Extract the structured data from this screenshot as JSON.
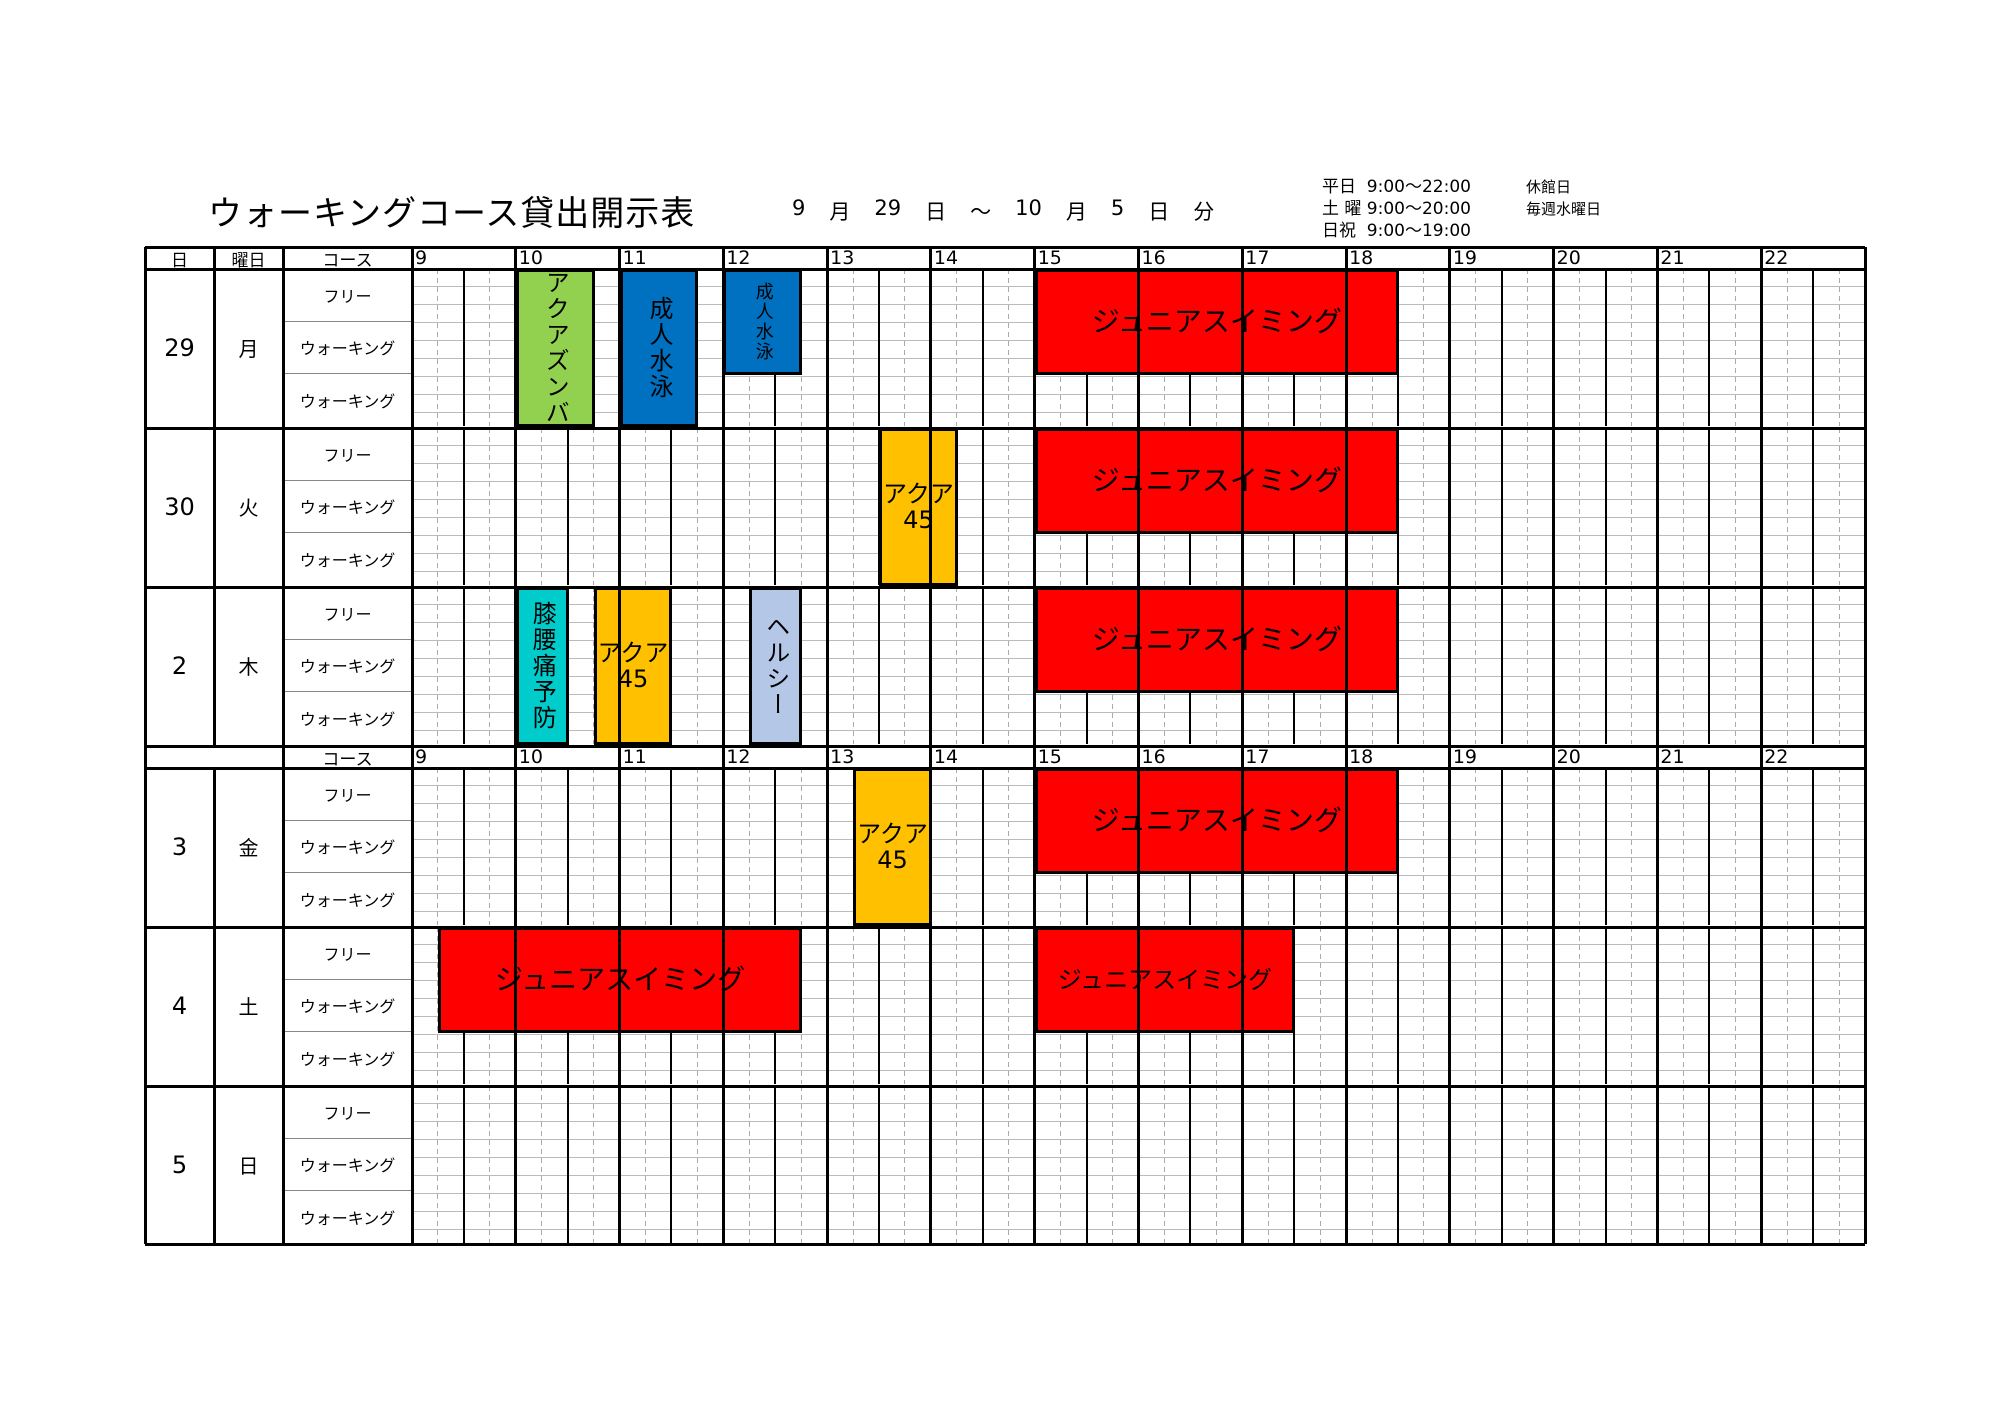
{
  "title": "ウォーキングコース貸出開示表",
  "period": [
    "9",
    "月",
    "29",
    "日",
    "～",
    "10",
    "月",
    "5",
    "日",
    "分"
  ],
  "opening_hours": [
    "平日  9:00～22:00",
    "土 曜 9:00～20:00",
    "日祝  9:00～19:00"
  ],
  "closed": {
    "label": "休館日",
    "value": "毎週水曜日"
  },
  "headers": {
    "day": "日",
    "weekday": "曜日",
    "course": "コース"
  },
  "hours": [
    "9",
    "10",
    "11",
    "12",
    "13",
    "14",
    "15",
    "16",
    "17",
    "18",
    "19",
    "20",
    "21",
    "22"
  ],
  "courses": [
    "フリー",
    "ウォーキング",
    "ウォーキング"
  ],
  "days": [
    {
      "day": "29",
      "weekday": "月"
    },
    {
      "day": "30",
      "weekday": "火"
    },
    {
      "day": "2",
      "weekday": "木"
    },
    {
      "day": "3",
      "weekday": "金"
    },
    {
      "day": "4",
      "weekday": "土"
    },
    {
      "day": "5",
      "weekday": "日"
    }
  ],
  "colors": {
    "junior": "#ff0000",
    "zumba": "#92d050",
    "adult": "#0070c0",
    "aqua45": "#ffc000",
    "knee": "#00cccc",
    "healthy": "#b4c7e7"
  },
  "events": [
    {
      "day": 0,
      "label": "アクアズンバ",
      "start": 10,
      "end": 10.75,
      "row": 0,
      "rows": 3,
      "color": "#92d050",
      "vertical": true
    },
    {
      "day": 0,
      "label": "成人水泳",
      "start": 11,
      "end": 11.75,
      "row": 0,
      "rows": 3,
      "color": "#0070c0",
      "vertical": true
    },
    {
      "day": 0,
      "label": "成人水泳",
      "start": 12,
      "end": 12.75,
      "row": 0,
      "rows": 2,
      "color": "#0070c0",
      "vertical": true,
      "small": true
    },
    {
      "day": 0,
      "label": "ジュニアスイミング",
      "start": 15,
      "end": 18.5,
      "row": 0,
      "rows": 2,
      "color": "#ff0000"
    },
    {
      "day": 1,
      "label": "アクア\n45",
      "start": 13.5,
      "end": 14.25,
      "row": 0,
      "rows": 3,
      "color": "#ffc000"
    },
    {
      "day": 1,
      "label": "ジュニアスイミング",
      "start": 15,
      "end": 18.5,
      "row": 0,
      "rows": 2,
      "color": "#ff0000"
    },
    {
      "day": 2,
      "label": "膝腰痛予防",
      "start": 10,
      "end": 10.5,
      "row": 0,
      "rows": 3,
      "color": "#00cccc",
      "vertical": true
    },
    {
      "day": 2,
      "label": "アクア\n45",
      "start": 10.75,
      "end": 11.5,
      "row": 0,
      "rows": 3,
      "color": "#ffc000"
    },
    {
      "day": 2,
      "label": "ヘルシー",
      "start": 12.25,
      "end": 12.75,
      "row": 0,
      "rows": 3,
      "color": "#b4c7e7",
      "vertical": true
    },
    {
      "day": 2,
      "label": "ジュニアスイミング",
      "start": 15,
      "end": 18.5,
      "row": 0,
      "rows": 2,
      "color": "#ff0000"
    },
    {
      "day": 3,
      "label": "アクア\n45",
      "start": 13.25,
      "end": 14,
      "row": 0,
      "rows": 3,
      "color": "#ffc000"
    },
    {
      "day": 3,
      "label": "ジュニアスイミング",
      "start": 15,
      "end": 18.5,
      "row": 0,
      "rows": 2,
      "color": "#ff0000"
    },
    {
      "day": 4,
      "label": "ジュニアスイミング",
      "start": 9.25,
      "end": 12.75,
      "row": 0,
      "rows": 2,
      "color": "#ff0000"
    },
    {
      "day": 4,
      "label": "ジュニアスイミング",
      "start": 15,
      "end": 17.5,
      "row": 0,
      "rows": 2,
      "color": "#ff0000"
    }
  ]
}
